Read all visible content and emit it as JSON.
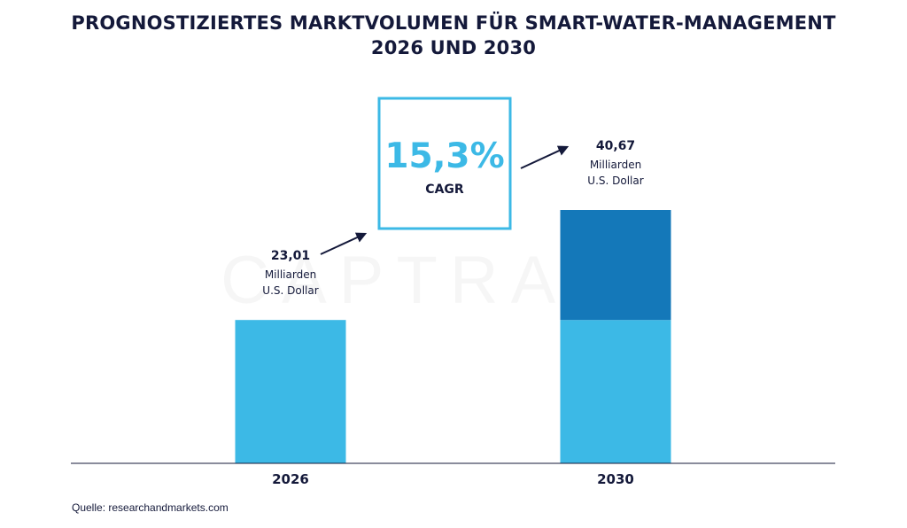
{
  "title": {
    "line1": "PROGNOSTIZIERTES MARKTVOLUMEN FÜR SMART-WATER-MANAGEMENT",
    "line2": "2026 UND 2030"
  },
  "watermark": "CAPTRADE",
  "source": "Quelle: researchandmarkets.com",
  "cagr": {
    "value": "15,3%",
    "label": "CAGR"
  },
  "colors": {
    "light_blue": "#3cb9e6",
    "dark_blue": "#1478b9",
    "text": "#14193a",
    "cagr_border": "#3cb9e6"
  },
  "chart_data": {
    "type": "bar",
    "stacked": true,
    "categories": [
      "2026",
      "2030"
    ],
    "values": [
      23.01,
      40.67
    ],
    "value_labels": [
      "23,01",
      "40,67"
    ],
    "unit_lines": [
      "Milliarden",
      "U.S. Dollar"
    ],
    "series": [
      {
        "values": [
          23.01,
          23.01
        ]
      },
      {
        "values": [
          0,
          17.66
        ]
      }
    ],
    "ylim": [
      0,
      40.67
    ],
    "grid": false,
    "legend": "none"
  }
}
